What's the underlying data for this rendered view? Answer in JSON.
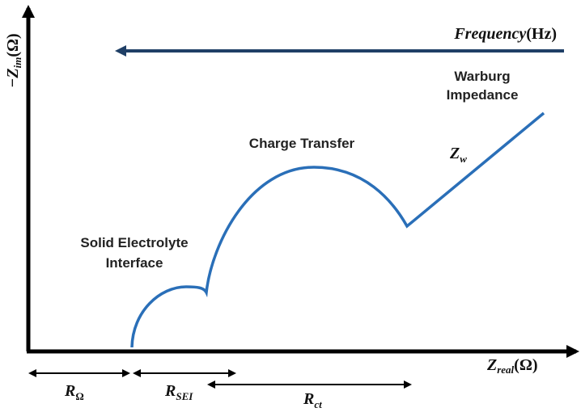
{
  "frequency_label": {
    "main": "Frequency",
    "suffix": "(Hz)"
  },
  "y_axis_label": {
    "main": "−Z",
    "sub": "im",
    "suffix": "(Ω)"
  },
  "x_axis_label": {
    "main": "Z",
    "sub": "real",
    "suffix": "(Ω)"
  },
  "annotations": {
    "warburg": [
      "Warburg",
      "Impedance"
    ],
    "charge_transfer": "Charge Transfer",
    "z_w": {
      "main": "Z",
      "sub": "w"
    },
    "sei": [
      "Solid Electrolyte",
      "Interface"
    ]
  },
  "resistances": {
    "r_omega": {
      "main": "R",
      "sub": "Ω"
    },
    "r_sei": {
      "main": "R",
      "sub": "SEI"
    },
    "r_ct": {
      "main": "R",
      "sub": "ct"
    }
  }
}
